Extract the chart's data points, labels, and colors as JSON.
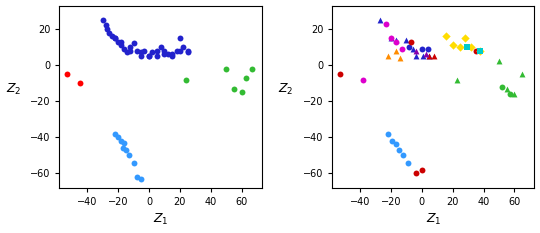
{
  "left": {
    "dark_blue": {
      "color": "#2222cc",
      "marker": "o",
      "x": [
        -30,
        -28,
        -26,
        -24,
        -22,
        -20,
        -18,
        -16,
        -14,
        -12,
        -10,
        -8,
        -5,
        -3,
        0,
        2,
        5,
        8,
        10,
        12,
        15,
        18,
        20,
        22,
        25,
        -27,
        -22,
        -18,
        -12,
        -5,
        0,
        5,
        10,
        15,
        20,
        25
      ],
      "y": [
        25,
        22,
        18,
        16,
        15,
        13,
        11,
        9,
        7,
        10,
        12,
        8,
        5,
        8,
        5,
        7,
        8,
        10,
        8,
        6,
        6,
        8,
        15,
        10,
        8,
        20,
        15,
        13,
        8,
        7,
        5,
        5,
        6,
        5,
        8,
        7
      ]
    },
    "red": {
      "color": "#ff0000",
      "marker": "o",
      "x": [
        -53,
        -45
      ],
      "y": [
        -5,
        -10
      ]
    },
    "green": {
      "color": "#33bb33",
      "marker": "o",
      "x": [
        24,
        50,
        55,
        60,
        63,
        67
      ],
      "y": [
        -8,
        -2,
        -13,
        -15,
        -7,
        -2
      ]
    },
    "light_blue": {
      "color": "#3399ff",
      "marker": "o",
      "x": [
        -22,
        -20,
        -18,
        -17,
        -16,
        -15,
        -13,
        -10,
        -8,
        -5
      ],
      "y": [
        -38,
        -40,
        -42,
        -46,
        -43,
        -47,
        -50,
        -54,
        -62,
        -63
      ]
    }
  },
  "right": {
    "dark_blue_tri": {
      "color": "#2222cc",
      "marker": "^",
      "x": [
        -27,
        -20,
        -17,
        -10,
        -6,
        -4,
        1,
        5
      ],
      "y": [
        25,
        15,
        14,
        14,
        9,
        5,
        5,
        5
      ]
    },
    "dark_blue_circ": {
      "color": "#2222cc",
      "marker": "o",
      "x": [
        -8,
        0,
        4
      ],
      "y": [
        10,
        9,
        9
      ]
    },
    "magenta_circ": {
      "color": "#dd00cc",
      "marker": "o",
      "x": [
        -23,
        -20,
        -17,
        -13,
        -38
      ],
      "y": [
        23,
        15,
        13,
        9,
        -8
      ]
    },
    "red_circ": {
      "color": "#cc0000",
      "marker": "o",
      "x": [
        -53,
        -7,
        35
      ],
      "y": [
        -5,
        13,
        8
      ]
    },
    "red_tri": {
      "color": "#cc0000",
      "marker": "^",
      "x": [
        5,
        8
      ],
      "y": [
        5,
        5
      ]
    },
    "orange_tri": {
      "color": "#ff8c00",
      "marker": "^",
      "x": [
        -22,
        -17,
        -14
      ],
      "y": [
        5,
        8,
        4
      ]
    },
    "purple_tri": {
      "color": "#8800aa",
      "marker": "^",
      "x": [
        -4,
        3
      ],
      "y": [
        8,
        6
      ]
    },
    "yellow_dia": {
      "color": "#ffdd00",
      "marker": "D",
      "x": [
        16,
        20,
        25,
        28,
        32,
        38
      ],
      "y": [
        16,
        11,
        10,
        15,
        10,
        8
      ]
    },
    "cyan_sq": {
      "color": "#00cccc",
      "marker": "s",
      "x": [
        29,
        38
      ],
      "y": [
        10,
        8
      ]
    },
    "green_tri": {
      "color": "#33bb33",
      "marker": "^",
      "x": [
        23,
        50,
        55,
        60,
        65
      ],
      "y": [
        -8,
        2,
        -13,
        -16,
        -5
      ]
    },
    "green_circ": {
      "color": "#33bb33",
      "marker": "o",
      "x": [
        52,
        57
      ],
      "y": [
        -12,
        -16
      ]
    },
    "light_blue_circ": {
      "color": "#3399ff",
      "marker": "o",
      "x": [
        -22,
        -19,
        -17,
        -15,
        -12,
        -9
      ],
      "y": [
        -38,
        -42,
        -44,
        -47,
        -50,
        -54
      ]
    },
    "red_circ_bottom": {
      "color": "#cc0000",
      "marker": "o",
      "x": [
        -4,
        0
      ],
      "y": [
        -60,
        -58
      ]
    }
  },
  "xlim": [
    -58,
    73
  ],
  "ylim": [
    -68,
    33
  ],
  "xticks": [
    -40,
    -20,
    0,
    20,
    40,
    60
  ],
  "yticks": [
    -60,
    -40,
    -20,
    0,
    20
  ],
  "xlabel": "$Z_1$",
  "ylabel": "$Z_2$"
}
